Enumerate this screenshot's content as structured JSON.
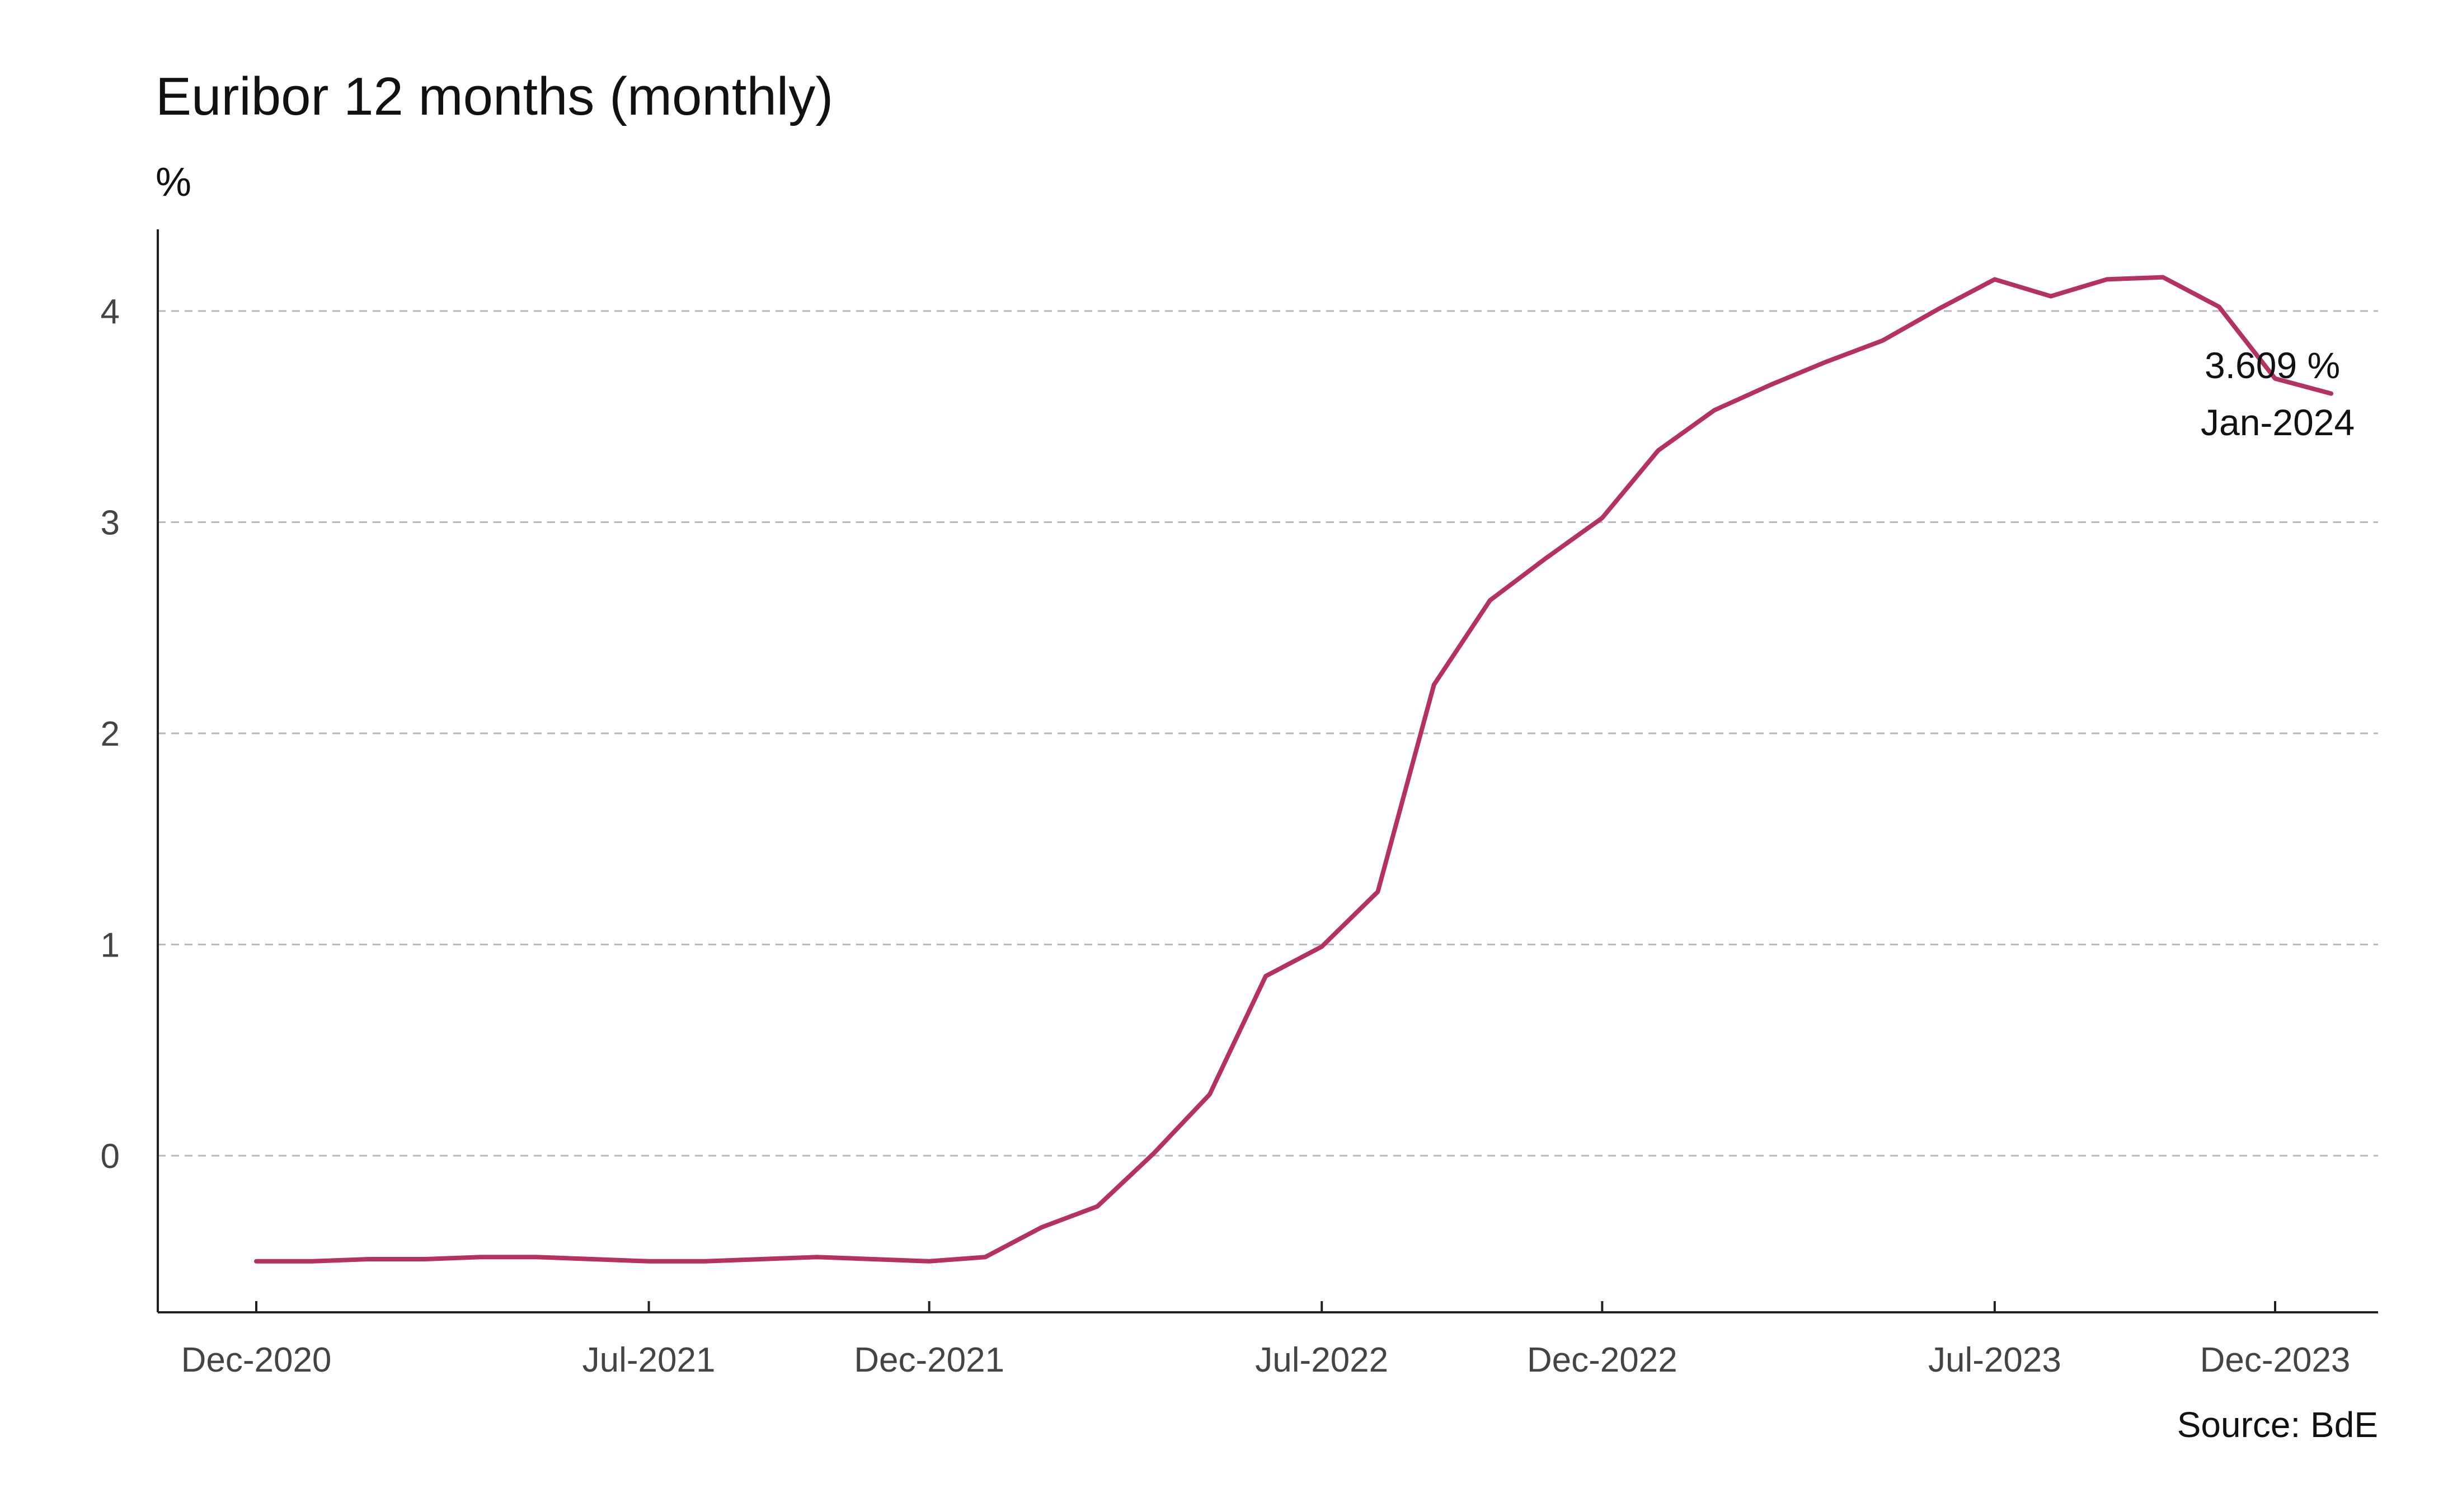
{
  "chart_data": {
    "type": "line",
    "title": "Euribor 12 months (monthly)",
    "ylabel": "%",
    "source": "Source: BdE",
    "ylim": [
      -0.73,
      4.4
    ],
    "yticks": [
      0,
      1,
      2,
      3,
      4
    ],
    "xticks": [
      {
        "label": "Dec-2020",
        "date": "2020-12"
      },
      {
        "label": "Jul-2021",
        "date": "2021-07"
      },
      {
        "label": "Dec-2021",
        "date": "2021-12"
      },
      {
        "label": "Jul-2022",
        "date": "2022-07"
      },
      {
        "label": "Dec-2022",
        "date": "2022-12"
      },
      {
        "label": "Jul-2023",
        "date": "2023-07"
      },
      {
        "label": "Dec-2023",
        "date": "2023-12"
      }
    ],
    "grid": "horizontal dashed",
    "line_color": "#b5325e",
    "x": [
      "2020-12",
      "2021-01",
      "2021-02",
      "2021-03",
      "2021-04",
      "2021-05",
      "2021-06",
      "2021-07",
      "2021-08",
      "2021-09",
      "2021-10",
      "2021-11",
      "2021-12",
      "2022-01",
      "2022-02",
      "2022-03",
      "2022-04",
      "2022-05",
      "2022-06",
      "2022-07",
      "2022-08",
      "2022-09",
      "2022-10",
      "2022-11",
      "2022-12",
      "2023-01",
      "2023-02",
      "2023-03",
      "2023-04",
      "2023-05",
      "2023-06",
      "2023-07",
      "2023-08",
      "2023-09",
      "2023-10",
      "2023-11",
      "2023-12",
      "2024-01"
    ],
    "values": [
      -0.5,
      -0.5,
      -0.49,
      -0.49,
      -0.48,
      -0.48,
      -0.49,
      -0.5,
      -0.5,
      -0.49,
      -0.48,
      -0.49,
      -0.5,
      -0.48,
      -0.34,
      -0.24,
      0.01,
      0.29,
      0.85,
      0.99,
      1.25,
      2.23,
      2.63,
      2.83,
      3.02,
      3.34,
      3.53,
      3.65,
      3.76,
      3.86,
      4.01,
      4.15,
      4.07,
      4.15,
      4.16,
      4.02,
      3.68,
      3.609
    ],
    "annotation": {
      "value_label": "3.609 %",
      "date_label": "Jan-2024"
    }
  }
}
